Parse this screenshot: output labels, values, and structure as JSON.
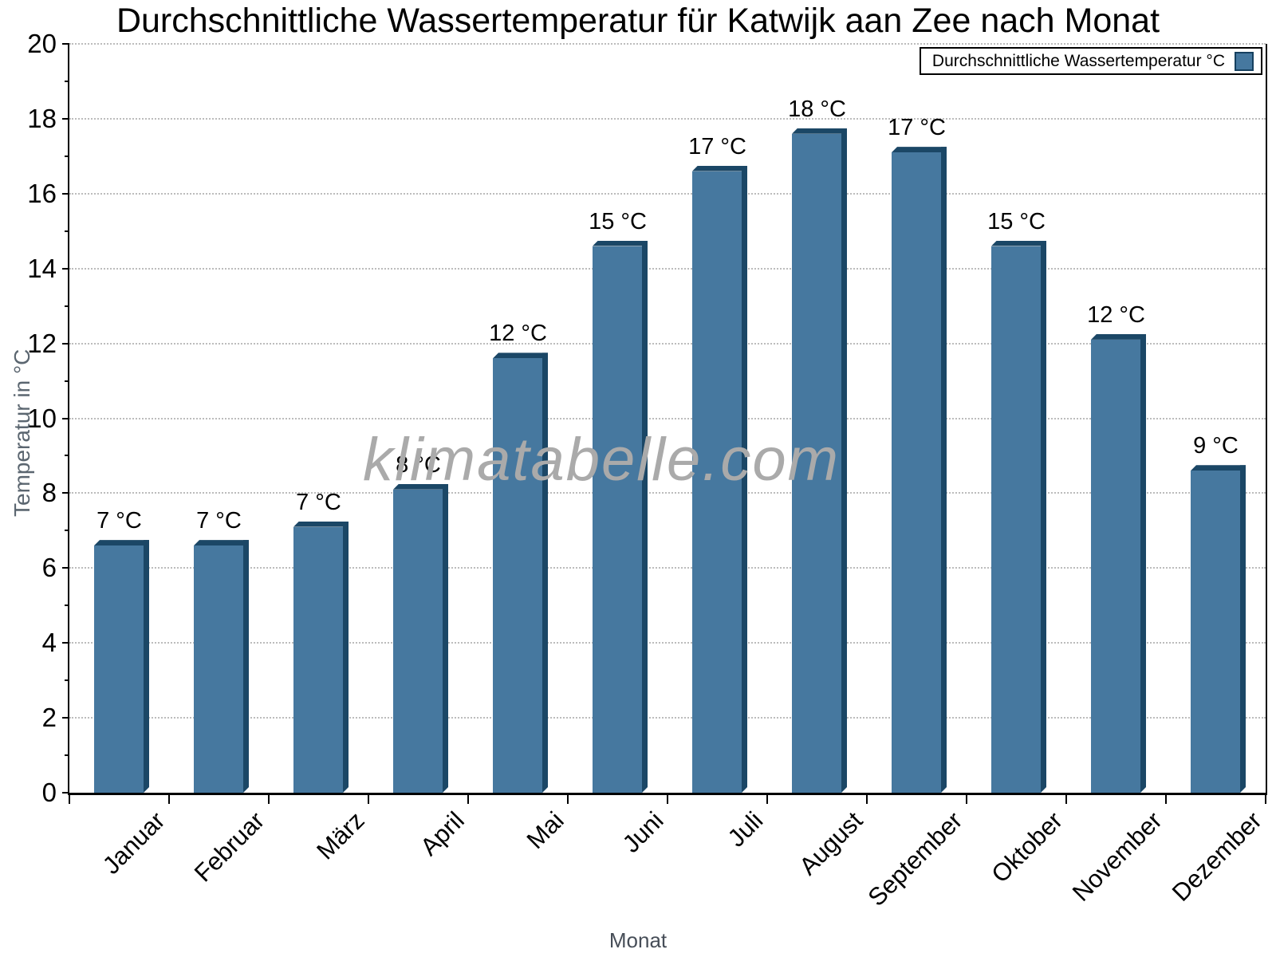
{
  "title": "Durchschnittliche Wassertemperatur für Katwijk aan Zee nach Monat",
  "legend": {
    "label": "Durchschnittliche Wassertemperatur °C"
  },
  "watermark": "klimatabelle.com",
  "colors": {
    "bar_face": "#46789f",
    "bar_shadow": "#1b4766",
    "grid": "#bcbcbc",
    "axis": "#000000",
    "y_axis_title": "#5b6670",
    "x_axis_title": "#474e58",
    "watermark": "#aaaaaa",
    "legend_swatch_fill": "#46789f",
    "legend_swatch_border": "#16405f"
  },
  "chart_data": {
    "type": "bar",
    "title": "Durchschnittliche Wassertemperatur für Katwijk aan Zee nach Monat",
    "xlabel": "Monat",
    "ylabel": "Temperatur in °C",
    "categories": [
      "Januar",
      "Februar",
      "März",
      "April",
      "Mai",
      "Juni",
      "Juli",
      "August",
      "September",
      "Oktober",
      "November",
      "Dezember"
    ],
    "values": [
      6.6,
      6.6,
      7.1,
      8.1,
      11.6,
      14.6,
      16.6,
      17.6,
      17.1,
      14.6,
      12.1,
      8.6
    ],
    "point_labels": [
      "7 °C",
      "7 °C",
      "7 °C",
      "8 °C",
      "12 °C",
      "15 °C",
      "17 °C",
      "18 °C",
      "17 °C",
      "15 °C",
      "12 °C",
      "9 °C"
    ],
    "rounded_values_c": [
      7,
      7,
      7,
      8,
      12,
      15,
      17,
      18,
      17,
      15,
      12,
      9
    ],
    "ylim": [
      0,
      20
    ],
    "ytick_step": 2,
    "yticks": [
      0,
      2,
      4,
      6,
      8,
      10,
      12,
      14,
      16,
      18,
      20
    ],
    "grid": "horizontal-dotted",
    "legend_position": "top-right",
    "legend_entries": [
      "Durchschnittliche Wassertemperatur °C"
    ]
  }
}
